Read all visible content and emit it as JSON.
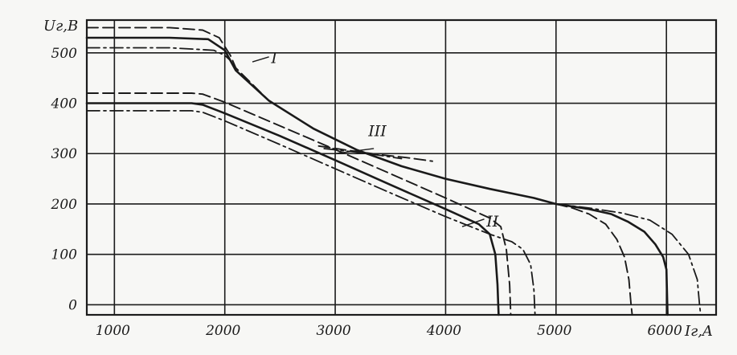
{
  "chart_data": {
    "type": "line",
    "xlabel": "Iг,A",
    "ylabel": "Uг,B",
    "x_ticks": [
      "1000",
      "2000",
      "3000",
      "4000",
      "5000",
      "6000"
    ],
    "y_ticks": [
      "0",
      "100",
      "200",
      "300",
      "400",
      "500"
    ],
    "xlim": [
      750,
      6450
    ],
    "ylim": [
      -20,
      565
    ],
    "grid": true,
    "series": [
      {
        "name": "I",
        "style": "solid",
        "x": [
          750,
          1500,
          1850,
          2000,
          2100,
          2400,
          2800,
          3200,
          3600,
          4000,
          4400,
          4800,
          5000,
          5300,
          5500,
          5650,
          5800,
          5900,
          5970,
          6000,
          6010
        ],
        "y": [
          530,
          530,
          527,
          505,
          465,
          405,
          350,
          307,
          275,
          250,
          230,
          212,
          200,
          190,
          180,
          165,
          145,
          120,
          95,
          70,
          -20
        ]
      },
      {
        "name": "I",
        "style": "dashed",
        "x": [
          750,
          1500,
          1800,
          1950,
          2050,
          2100,
          2400
        ],
        "y": [
          550,
          550,
          545,
          530,
          495,
          470,
          405
        ]
      },
      {
        "name": "I",
        "style": "dashdot",
        "x": [
          750,
          1500,
          1900,
          2000,
          2050
        ],
        "y": [
          510,
          510,
          505,
          495,
          485
        ]
      },
      {
        "name": "I",
        "style": "dashed",
        "x": [
          5000,
          5150,
          5300,
          5450,
          5550,
          5620,
          5660,
          5680,
          5690
        ],
        "y": [
          200,
          192,
          180,
          160,
          130,
          95,
          50,
          0,
          -20
        ]
      },
      {
        "name": "I",
        "style": "dashdot",
        "x": [
          5000,
          5300,
          5600,
          5850,
          6050,
          6200,
          6280,
          6300,
          6310
        ],
        "y": [
          200,
          192,
          182,
          168,
          140,
          100,
          50,
          0,
          -20
        ]
      },
      {
        "name": "II",
        "style": "solid",
        "x": [
          750,
          1700,
          1800,
          2000,
          2500,
          3000,
          3500,
          4000,
          4300,
          4400,
          4450,
          4470,
          4480
        ],
        "y": [
          400,
          400,
          397,
          380,
          335,
          287,
          238,
          190,
          160,
          140,
          100,
          40,
          -20
        ]
      },
      {
        "name": "II",
        "style": "dashed",
        "x": [
          750,
          1700,
          1800,
          2000,
          2500,
          3000,
          3500,
          4000,
          4400,
          4500,
          4550,
          4580,
          4590
        ],
        "y": [
          420,
          420,
          418,
          402,
          355,
          308,
          260,
          212,
          172,
          155,
          110,
          40,
          -20
        ]
      },
      {
        "name": "II",
        "style": "dashdot",
        "x": [
          750,
          1700,
          1800,
          2000,
          2500,
          3000,
          3500,
          4000,
          4400,
          4600,
          4700,
          4770,
          4800,
          4810
        ],
        "y": [
          385,
          385,
          382,
          365,
          318,
          270,
          222,
          175,
          140,
          125,
          110,
          80,
          30,
          -20
        ]
      },
      {
        "name": "III",
        "style": "dashed",
        "x": [
          2850,
          3100,
          3400,
          3650,
          3880
        ],
        "y": [
          315,
          307,
          298,
          292,
          285
        ]
      },
      {
        "name": "III",
        "style": "dashdot",
        "x": [
          2900,
          3300,
          3600
        ],
        "y": [
          310,
          300,
          290
        ]
      }
    ],
    "annotations": [
      "I",
      "II",
      "III"
    ]
  }
}
